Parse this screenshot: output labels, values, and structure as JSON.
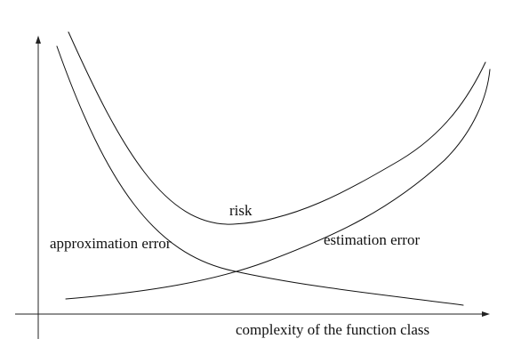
{
  "diagram": {
    "x_axis_label": "complexity of the function class",
    "curves": {
      "risk": "risk",
      "approximation": "approximation error",
      "estimation": "estimation error"
    }
  }
}
